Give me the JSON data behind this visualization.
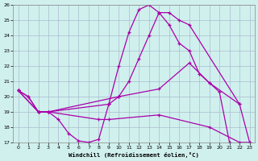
{
  "xlabel": "Windchill (Refroidissement éolien,°C)",
  "xlim": [
    -0.5,
    23.5
  ],
  "ylim": [
    17,
    26
  ],
  "yticks": [
    17,
    18,
    19,
    20,
    21,
    22,
    23,
    24,
    25,
    26
  ],
  "xticks": [
    0,
    1,
    2,
    3,
    4,
    5,
    6,
    7,
    8,
    9,
    10,
    11,
    12,
    13,
    14,
    15,
    16,
    17,
    18,
    19,
    20,
    21,
    22,
    23
  ],
  "background_color": "#d0f0ee",
  "grid_color": "#aabbcc",
  "line_color": "#aa00aa",
  "lines": [
    {
      "x": [
        0,
        1,
        2,
        3,
        4,
        5,
        6,
        7,
        8,
        9,
        10,
        11,
        12,
        13,
        14,
        15,
        16,
        17,
        18,
        19,
        20,
        21
      ],
      "y": [
        20.4,
        20.0,
        19.0,
        19.0,
        18.5,
        17.6,
        17.1,
        17.0,
        17.2,
        19.5,
        22.0,
        24.2,
        25.7,
        26.0,
        25.5,
        24.7,
        23.5,
        23.0,
        21.5,
        20.9,
        20.3,
        17.0
      ]
    },
    {
      "x": [
        0,
        1,
        2,
        3,
        9,
        10,
        11,
        12,
        13,
        14,
        15,
        16,
        17,
        22,
        23
      ],
      "y": [
        20.4,
        20.0,
        19.0,
        19.0,
        19.5,
        20.0,
        21.0,
        22.5,
        24.0,
        25.5,
        25.5,
        25.0,
        24.7,
        19.5,
        17.0
      ]
    },
    {
      "x": [
        0,
        2,
        3,
        10,
        14,
        17,
        19,
        22
      ],
      "y": [
        20.4,
        19.0,
        19.0,
        20.0,
        20.5,
        22.2,
        20.9,
        19.5
      ]
    },
    {
      "x": [
        0,
        2,
        3,
        8,
        9,
        14,
        19,
        22,
        23
      ],
      "y": [
        20.4,
        19.0,
        19.0,
        18.5,
        18.5,
        18.8,
        18.0,
        17.0,
        17.0
      ]
    }
  ]
}
